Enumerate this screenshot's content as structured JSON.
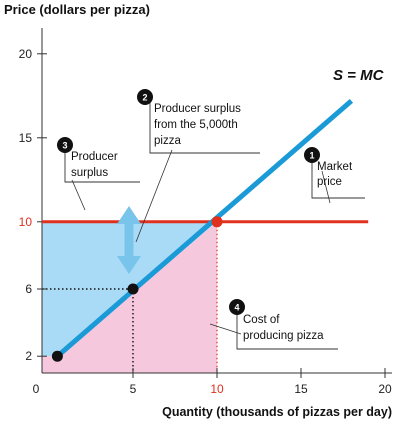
{
  "chart_data": {
    "type": "line",
    "ylabel": "Price (dollars per pizza)",
    "xlabel": "Quantity (thousands of pizzas per day)",
    "xlim": [
      0,
      21
    ],
    "ylim": [
      1,
      20.5
    ],
    "x_ticks": [
      0,
      5,
      10,
      15,
      20
    ],
    "y_ticks": [
      2,
      6,
      10,
      15,
      20
    ],
    "highlight_tick": 10,
    "supply_curve": {
      "name": "S = MC",
      "x": [
        0.5,
        18
      ],
      "y": [
        2,
        17.2
      ],
      "color": "#1a9ad6"
    },
    "market_price": {
      "value": 10,
      "x_range": [
        0,
        19
      ],
      "color": "#e0301e"
    },
    "points": [
      {
        "x": 0.5,
        "y": 2,
        "color": "#111111"
      },
      {
        "x": 5,
        "y": 6,
        "color": "#111111"
      },
      {
        "x": 10,
        "y": 10,
        "color": "#e0301e"
      }
    ],
    "regions": {
      "producer_surplus_color": "#a9dbf6",
      "cost_color": "#f6c8de"
    },
    "annotations": [
      {
        "number": "1",
        "lines": [
          "Market",
          "price"
        ]
      },
      {
        "number": "2",
        "lines": [
          "Producer surplus",
          "from the 5,000th",
          "pizza"
        ]
      },
      {
        "number": "3",
        "lines": [
          "Producer",
          "surplus"
        ]
      },
      {
        "number": "4",
        "lines": [
          "Cost of",
          "producing pizza"
        ]
      }
    ]
  }
}
